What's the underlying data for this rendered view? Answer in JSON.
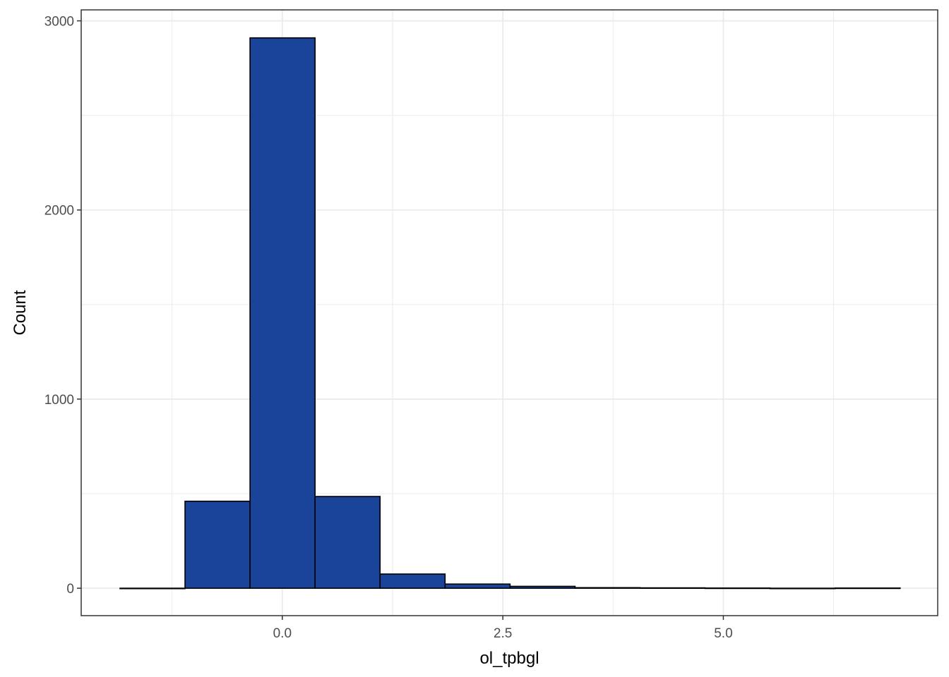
{
  "chart_data": {
    "type": "bar",
    "subtype": "histogram",
    "title": "",
    "xlabel": "ol_tpbgl",
    "ylabel": "Count",
    "xlim": [
      -2.28,
      7.43
    ],
    "ylim": [
      -145,
      3058
    ],
    "x_ticks": [
      0.0,
      2.5,
      5.0
    ],
    "x_tick_labels": [
      "0.0",
      "2.5",
      "5.0"
    ],
    "y_ticks": [
      0,
      1000,
      2000,
      3000
    ],
    "y_tick_labels": [
      "0",
      "1000",
      "2000",
      "3000"
    ],
    "bin_width": 0.737,
    "bin_starts": [
      -1.84,
      -1.103,
      -0.366,
      0.371,
      1.108,
      1.845,
      2.582,
      3.319,
      4.056,
      4.793,
      5.53,
      6.267
    ],
    "values": [
      0,
      460,
      2910,
      485,
      75,
      22,
      10,
      3,
      2,
      1,
      0,
      1
    ],
    "colors": {
      "fill": "#19449A",
      "outline": "#000000",
      "grid": "#ebebeb",
      "panel_border": "#333333"
    },
    "grid": true,
    "legend": "none"
  }
}
